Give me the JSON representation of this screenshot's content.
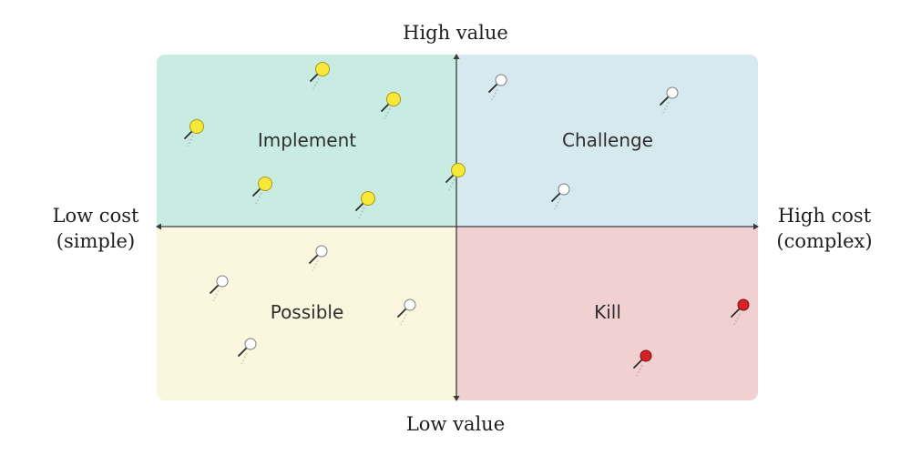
{
  "axes": {
    "top": "High value",
    "bottom": "Low value",
    "left": [
      "Low cost",
      "(simple)"
    ],
    "right": [
      "High cost",
      "(complex)"
    ]
  },
  "quadrants": {
    "implement": {
      "label": "Implement",
      "color": "#c8ece2"
    },
    "challenge": {
      "label": "Challenge",
      "color": "#d6e9ee"
    },
    "possible": {
      "label": "Possible",
      "color": "#fbf7df"
    },
    "kill": {
      "label": "Kill",
      "color": "#f1d0d2"
    }
  },
  "pin_colors": {
    "yellow": "#f7e83a",
    "white": "#ffffff",
    "red": "#d42226"
  },
  "pins": [
    {
      "quadrant": "implement",
      "color": "yellow"
    },
    {
      "quadrant": "implement",
      "color": "yellow"
    },
    {
      "quadrant": "implement",
      "color": "yellow"
    },
    {
      "quadrant": "implement",
      "color": "yellow"
    },
    {
      "quadrant": "implement",
      "color": "yellow"
    },
    {
      "quadrant": "implement",
      "color": "yellow"
    },
    {
      "quadrant": "challenge",
      "color": "white"
    },
    {
      "quadrant": "challenge",
      "color": "white"
    },
    {
      "quadrant": "challenge",
      "color": "white"
    },
    {
      "quadrant": "possible",
      "color": "white"
    },
    {
      "quadrant": "possible",
      "color": "white"
    },
    {
      "quadrant": "possible",
      "color": "white"
    },
    {
      "quadrant": "possible",
      "color": "white"
    },
    {
      "quadrant": "kill",
      "color": "red"
    },
    {
      "quadrant": "kill",
      "color": "red"
    }
  ]
}
